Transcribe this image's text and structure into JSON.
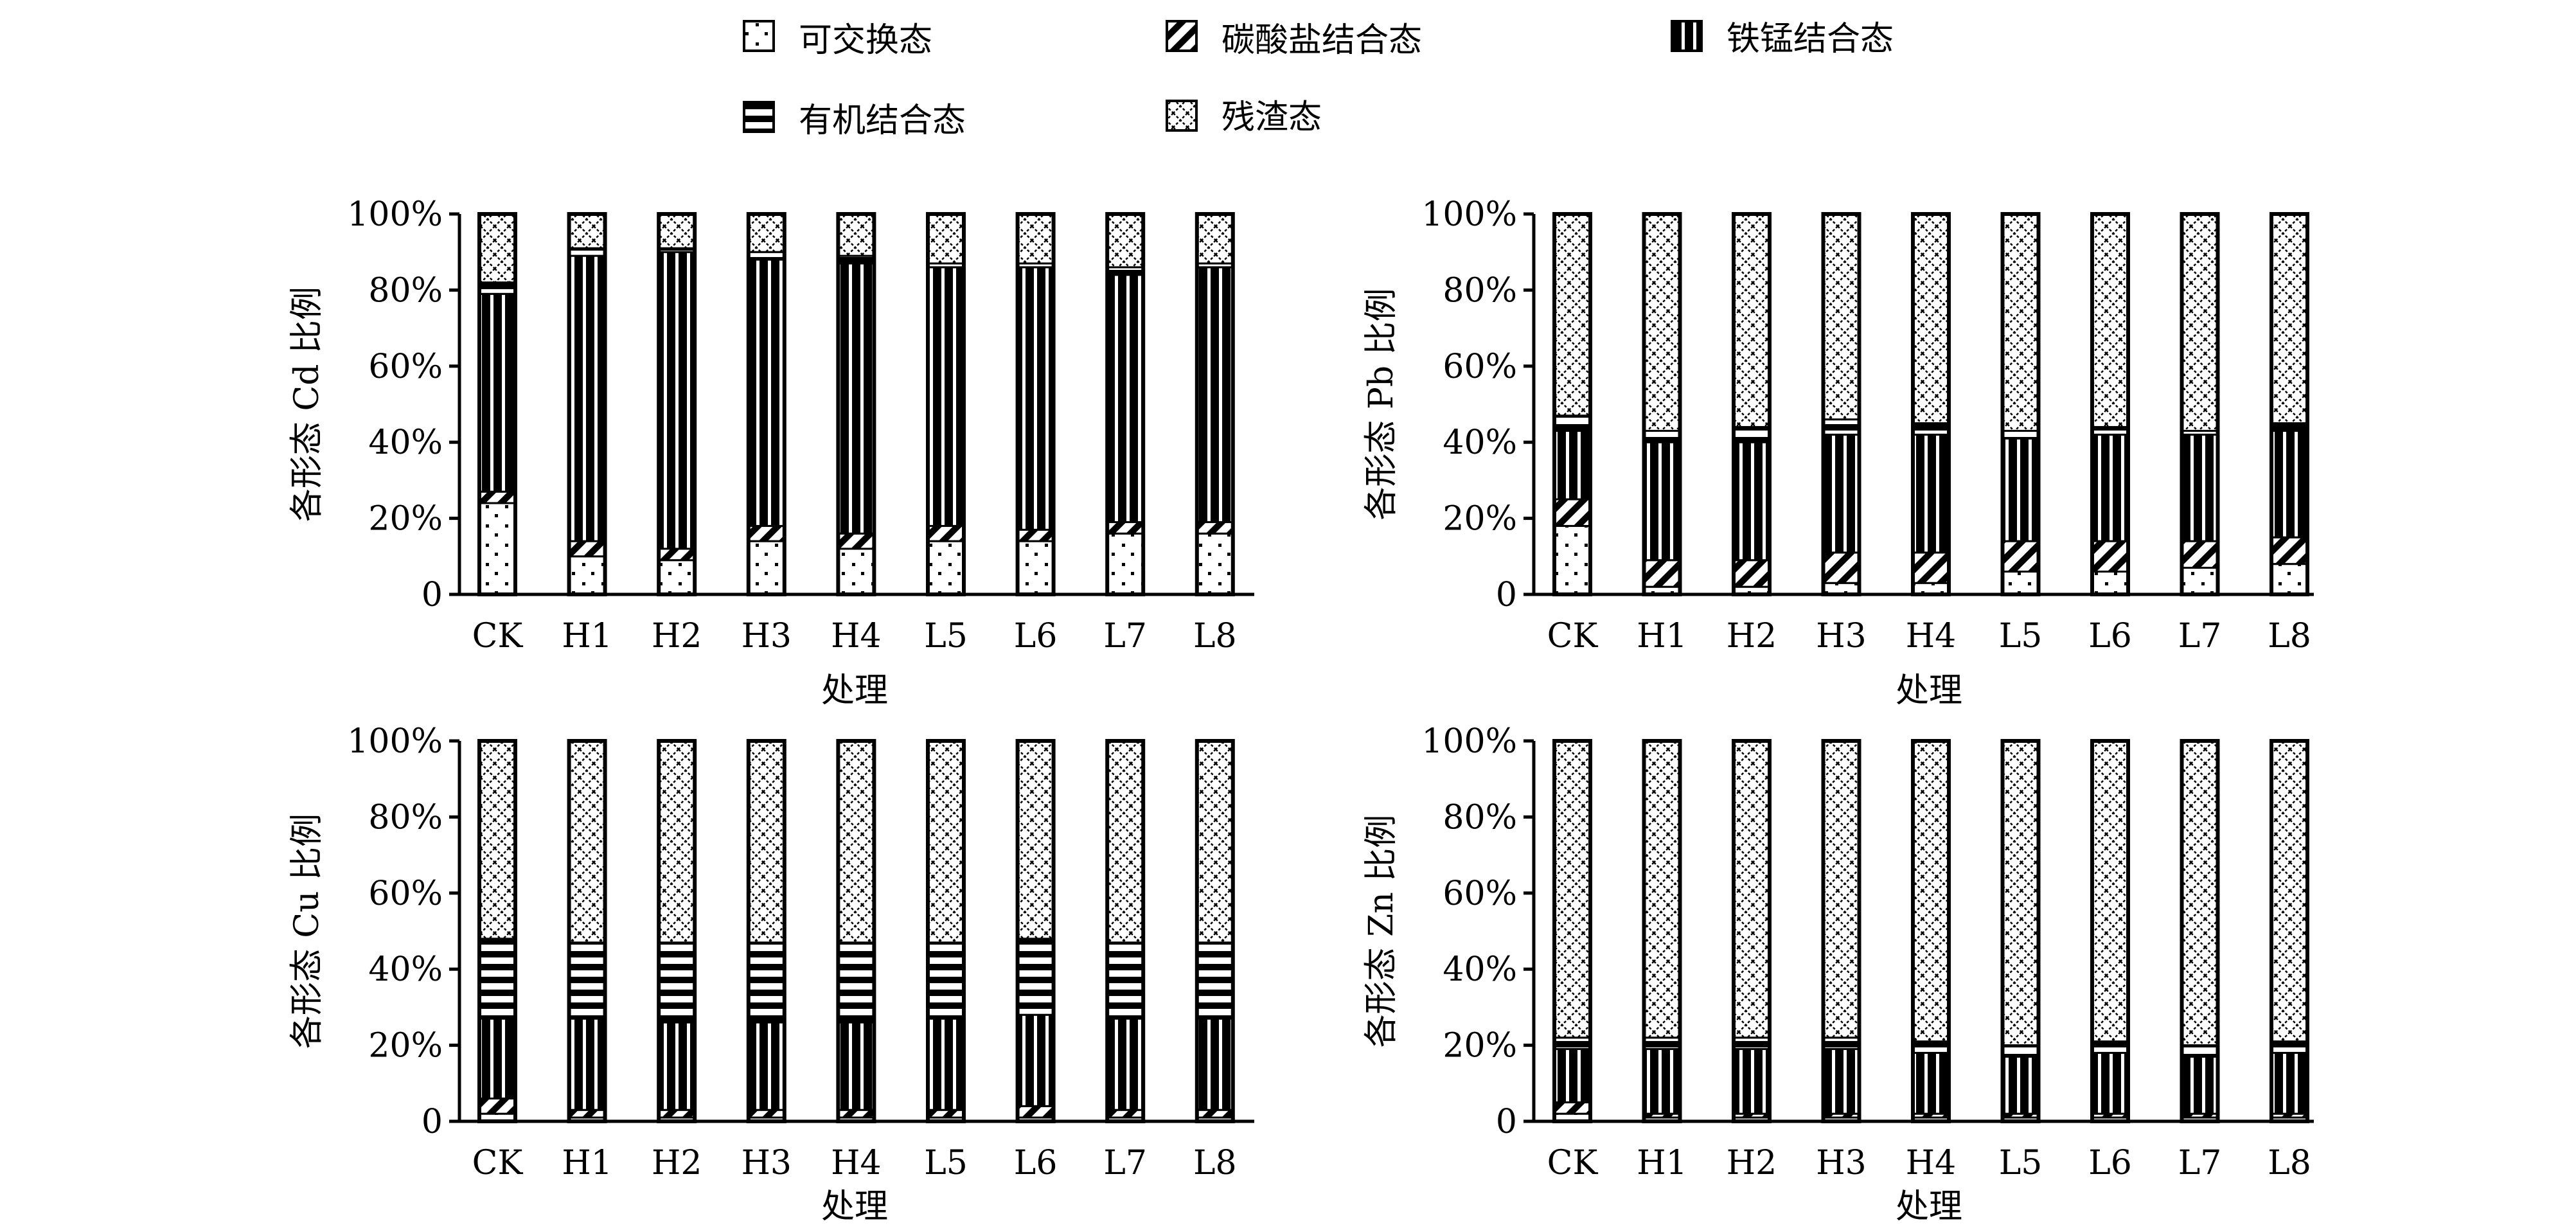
{
  "legend": [
    {
      "key": "exchangeable",
      "label": "可交换态",
      "pattern": "dots"
    },
    {
      "key": "carbonate",
      "label": "碳酸盐结合态",
      "pattern": "diagonal"
    },
    {
      "key": "femn",
      "label": "铁锰结合态",
      "pattern": "vertical"
    },
    {
      "key": "organic",
      "label": "有机结合态",
      "pattern": "horizontal"
    },
    {
      "key": "residual",
      "label": "残渣态",
      "pattern": "crosshatch"
    }
  ],
  "chart_data": [
    {
      "type": "bar",
      "stacked": true,
      "ylabel": "各形态 Cd 比例",
      "xlabel": "处理",
      "categories": [
        "CK",
        "H1",
        "H2",
        "H3",
        "H4",
        "L5",
        "L6",
        "L7",
        "L8"
      ],
      "yticks": [
        "0",
        "20%",
        "40%",
        "60%",
        "80%",
        "100%"
      ],
      "ylim": [
        0,
        100
      ],
      "series": [
        {
          "name": "可交换态",
          "values": [
            24,
            10,
            9,
            14,
            12,
            14,
            14,
            16,
            16
          ]
        },
        {
          "name": "碳酸盐结合态",
          "values": [
            3,
            4,
            3,
            4,
            4,
            4,
            3,
            3,
            3
          ]
        },
        {
          "name": "铁锰结合态",
          "values": [
            52,
            75,
            78,
            70,
            71,
            68,
            69,
            65,
            67
          ]
        },
        {
          "name": "有机结合态",
          "values": [
            3,
            2,
            1,
            2,
            2,
            1,
            1,
            2,
            1
          ]
        },
        {
          "name": "残渣态",
          "values": [
            18,
            9,
            9,
            10,
            11,
            13,
            13,
            14,
            13
          ]
        }
      ]
    },
    {
      "type": "bar",
      "stacked": true,
      "ylabel": "各形态 Pb 比例",
      "xlabel": "处理",
      "categories": [
        "CK",
        "H1",
        "H2",
        "H3",
        "H4",
        "L5",
        "L6",
        "L7",
        "L8"
      ],
      "yticks": [
        "0",
        "20%",
        "40%",
        "60%",
        "80%",
        "100%"
      ],
      "ylim": [
        0,
        100
      ],
      "series": [
        {
          "name": "可交换态",
          "values": [
            18,
            2,
            2,
            3,
            3,
            6,
            6,
            7,
            8
          ]
        },
        {
          "name": "碳酸盐结合态",
          "values": [
            7,
            7,
            7,
            8,
            8,
            8,
            8,
            7,
            7
          ]
        },
        {
          "name": "铁锰结合态",
          "values": [
            18,
            31,
            31,
            31,
            31,
            27,
            28,
            28,
            28
          ]
        },
        {
          "name": "有机结合态",
          "values": [
            4,
            3,
            4,
            4,
            3,
            2,
            2,
            1,
            2
          ]
        },
        {
          "name": "残渣态",
          "values": [
            53,
            57,
            56,
            54,
            55,
            57,
            56,
            57,
            55
          ]
        }
      ]
    },
    {
      "type": "bar",
      "stacked": true,
      "ylabel": "各形态 Cu 比例",
      "xlabel": "处理",
      "categories": [
        "CK",
        "H1",
        "H2",
        "H3",
        "H4",
        "L5",
        "L6",
        "L7",
        "L8"
      ],
      "yticks": [
        "0",
        "20%",
        "40%",
        "60%",
        "80%",
        "100%"
      ],
      "ylim": [
        0,
        100
      ],
      "series": [
        {
          "name": "可交换态",
          "values": [
            2,
            1,
            1,
            1,
            1,
            1,
            1,
            1,
            1
          ]
        },
        {
          "name": "碳酸盐结合态",
          "values": [
            4,
            2,
            2,
            2,
            2,
            2,
            3,
            2,
            2
          ]
        },
        {
          "name": "铁锰结合态",
          "values": [
            21,
            24,
            23,
            23,
            23,
            24,
            24,
            24,
            24
          ]
        },
        {
          "name": "有机结合态",
          "values": [
            21,
            20,
            21,
            21,
            21,
            20,
            20,
            20,
            20
          ]
        },
        {
          "name": "残渣态",
          "values": [
            52,
            53,
            53,
            53,
            53,
            53,
            52,
            53,
            53
          ]
        }
      ]
    },
    {
      "type": "bar",
      "stacked": true,
      "ylabel": "各形态 Zn 比例",
      "xlabel": "处理",
      "categories": [
        "CK",
        "H1",
        "H2",
        "H3",
        "H4",
        "L5",
        "L6",
        "L7",
        "L8"
      ],
      "yticks": [
        "0",
        "20%",
        "40%",
        "60%",
        "80%",
        "100%"
      ],
      "ylim": [
        0,
        100
      ],
      "series": [
        {
          "name": "可交换态",
          "values": [
            2,
            1,
            1,
            1,
            1,
            1,
            1,
            1,
            1
          ]
        },
        {
          "name": "碳酸盐结合态",
          "values": [
            3,
            1,
            1,
            1,
            1,
            1,
            1,
            1,
            1
          ]
        },
        {
          "name": "铁锰结合态",
          "values": [
            14,
            17,
            17,
            17,
            16,
            15,
            16,
            15,
            16
          ]
        },
        {
          "name": "有机结合态",
          "values": [
            3,
            3,
            3,
            3,
            3,
            3,
            3,
            3,
            3
          ]
        },
        {
          "name": "残渣态",
          "values": [
            78,
            78,
            78,
            78,
            79,
            80,
            79,
            80,
            79
          ]
        }
      ]
    }
  ]
}
